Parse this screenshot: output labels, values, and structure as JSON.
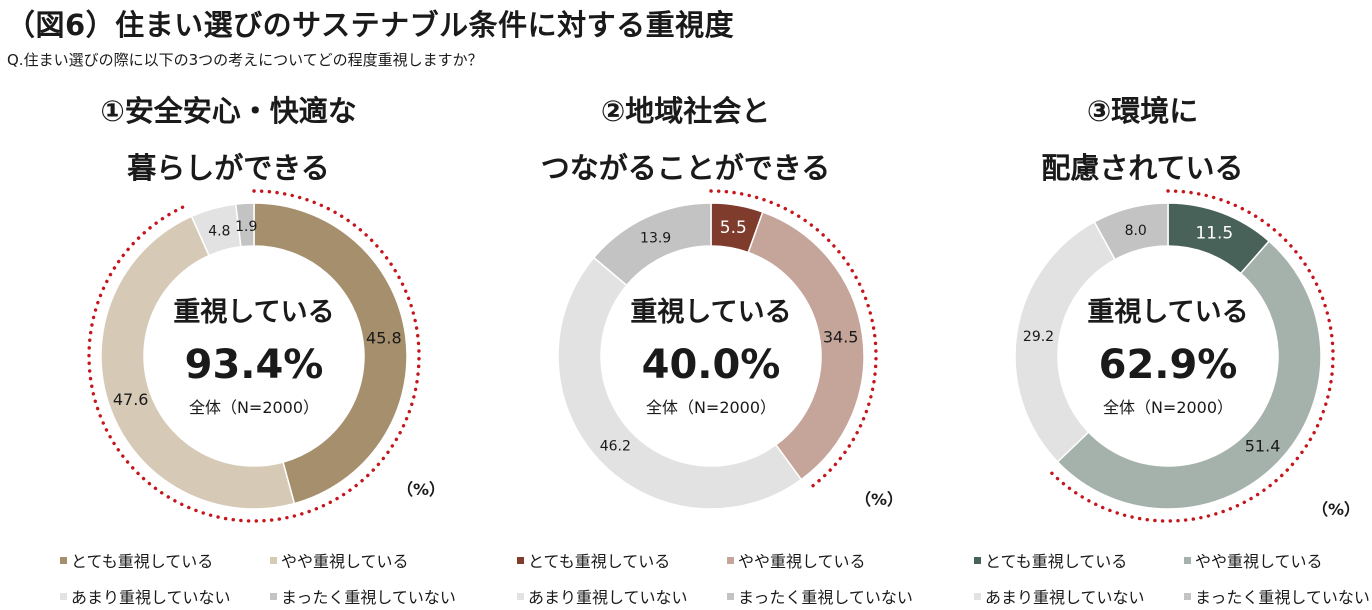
{
  "header": {
    "title": "（図6）住まい選びのサステナブル条件に対する重視度",
    "question": "Q.住まい選びの際に以下の3つの考えについてどの程度重視しますか？"
  },
  "chart_data": [
    {
      "type": "pie",
      "title_lines": [
        "①安全安心・快適な",
        "暮らしができる"
      ],
      "categories": [
        "とても重視している",
        "やや重視している",
        "あまり重視していない",
        "まったく重視していない"
      ],
      "values": [
        45.8,
        47.6,
        4.8,
        1.9
      ],
      "value_labels": [
        "45.8",
        "47.6",
        "4.8",
        "1.9"
      ],
      "colors": [
        "#a58f6c",
        "#d6cab6",
        "#e2e2e2",
        "#c3c3c3"
      ],
      "center_label": "重視している",
      "center_value": "93.4%",
      "center_base": "全体（N=2000）",
      "unit": "（%）"
    },
    {
      "type": "pie",
      "title_lines": [
        "②地域社会と",
        "つながることができる"
      ],
      "categories": [
        "とても重視している",
        "やや重視している",
        "あまり重視していない",
        "まったく重視していない"
      ],
      "values": [
        5.5,
        34.5,
        46.2,
        13.9
      ],
      "value_labels": [
        "5.5",
        "34.5",
        "46.2",
        "13.9"
      ],
      "colors": [
        "#7f3b2c",
        "#c5a49a",
        "#e2e2e2",
        "#c3c3c3"
      ],
      "center_label": "重視している",
      "center_value": "40.0%",
      "center_base": "全体（N=2000）",
      "unit": "（%）"
    },
    {
      "type": "pie",
      "title_lines": [
        "③環境に",
        "配慮されている"
      ],
      "categories": [
        "とても重視している",
        "やや重視している",
        "あまり重視していない",
        "まったく重視していない"
      ],
      "values": [
        11.5,
        51.4,
        29.2,
        8.0
      ],
      "value_labels": [
        "11.5",
        "51.4",
        "29.2",
        "8.0"
      ],
      "colors": [
        "#496259",
        "#a5b2ac",
        "#e2e2e2",
        "#c3c3c3"
      ],
      "center_label": "重視している",
      "center_value": "62.9%",
      "center_base": "全体（N=2000）",
      "unit": "（%）"
    }
  ]
}
